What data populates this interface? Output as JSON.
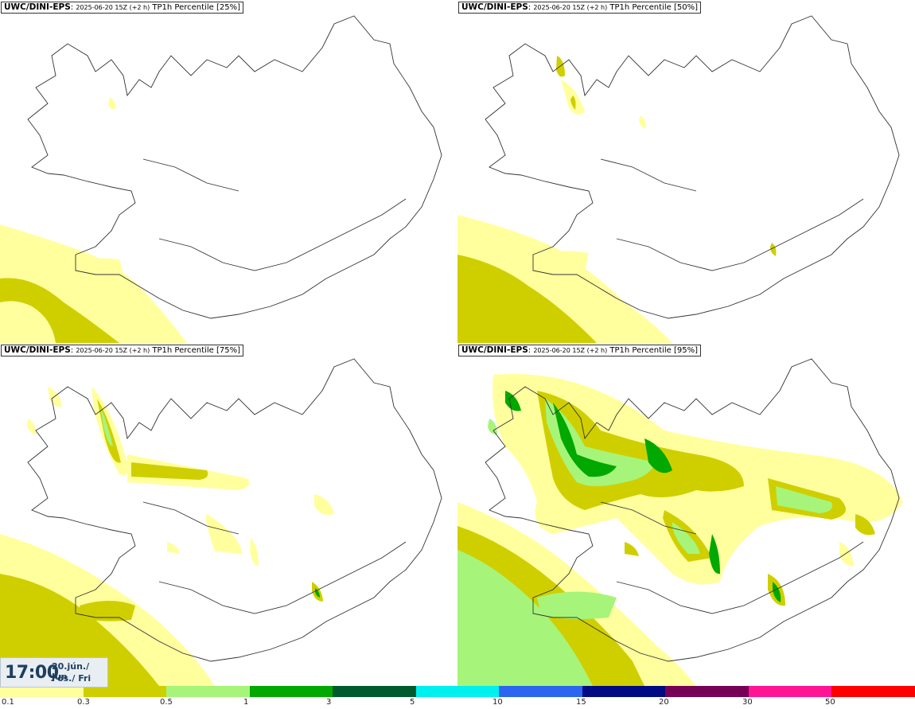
{
  "panels": [
    {
      "model": "UWC/DINI-EPS",
      "run": "2025-06-20 15Z (+2 h)",
      "title": "TP1h Percentile [25%]"
    },
    {
      "model": "UWC/DINI-EPS",
      "run": "2025-06-20 15Z (+2 h)",
      "title": "TP1h Percentile [50%]"
    },
    {
      "model": "UWC/DINI-EPS",
      "run": "2025-06-20 15Z (+2 h)",
      "title": "TP1h Percentile [75%]"
    },
    {
      "model": "UWC/DINI-EPS",
      "run": "2025-06-20 15Z (+2 h)",
      "title": "TP1h Percentile [95%]"
    }
  ],
  "valid_time": {
    "time": "17:00",
    "date_line1": "20.jún./ Jun",
    "date_line2": "Fös./ Fri"
  },
  "legend": {
    "thresholds": [
      "0.1",
      "0.3",
      "0.5",
      "1",
      "3",
      "5",
      "10",
      "15",
      "20",
      "30",
      "50"
    ],
    "colors": [
      "#ffff9e",
      "#cfcf00",
      "#a6f57a",
      "#00a800",
      "#005a2e",
      "#00f0f0",
      "#2c66f0",
      "#000a82",
      "#760055",
      "#ff1493",
      "#ff0000"
    ]
  },
  "colors": {
    "light_yellow": "#ffff9e",
    "olive": "#cfcf00",
    "light_green": "#a6f57a",
    "green": "#00a800"
  }
}
